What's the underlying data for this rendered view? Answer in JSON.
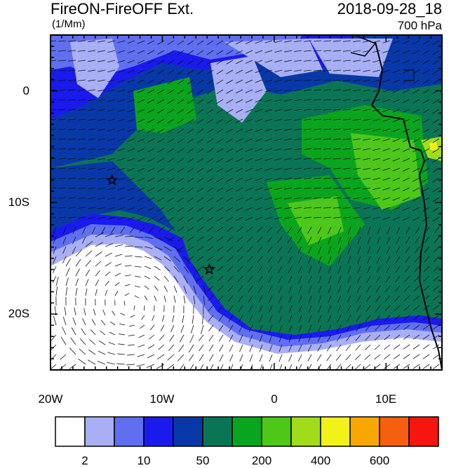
{
  "header": {
    "title": "FireON-FireOFF Ext.",
    "units": "(1/Mm)",
    "datetime": "2018-09-28_18",
    "level": "700 hPa"
  },
  "map": {
    "lon_range": [
      -20,
      15
    ],
    "lat_range": [
      -25,
      5
    ],
    "y_ticks": [
      {
        "value": 0,
        "label": "0"
      },
      {
        "value": -10,
        "label": "10S"
      },
      {
        "value": -20,
        "label": "20S"
      }
    ],
    "x_ticks": [
      {
        "value": -20,
        "label": "20W"
      },
      {
        "value": -10,
        "label": "10W"
      },
      {
        "value": 0,
        "label": "0"
      },
      {
        "value": 10,
        "label": "10E"
      }
    ],
    "markers": [
      {
        "name": "star-marker-1",
        "lon": -14.5,
        "lat": -8.0
      },
      {
        "name": "star-marker-2",
        "lon": -5.8,
        "lat": -16.0
      }
    ]
  },
  "colorbar": {
    "colors": [
      "#ffffff",
      "#a8aff5",
      "#5f6ff0",
      "#1a1aee",
      "#0838a8",
      "#0a7555",
      "#0aa51e",
      "#4dc81a",
      "#a0dc1a",
      "#f2f218",
      "#f7a800",
      "#f75f10",
      "#f71510"
    ],
    "labels": [
      {
        "boundary": 1,
        "text": "2"
      },
      {
        "boundary": 3,
        "text": "10"
      },
      {
        "boundary": 5,
        "text": "50"
      },
      {
        "boundary": 7,
        "text": "200"
      },
      {
        "boundary": 9,
        "text": "400"
      },
      {
        "boundary": 11,
        "text": "600"
      }
    ]
  }
}
